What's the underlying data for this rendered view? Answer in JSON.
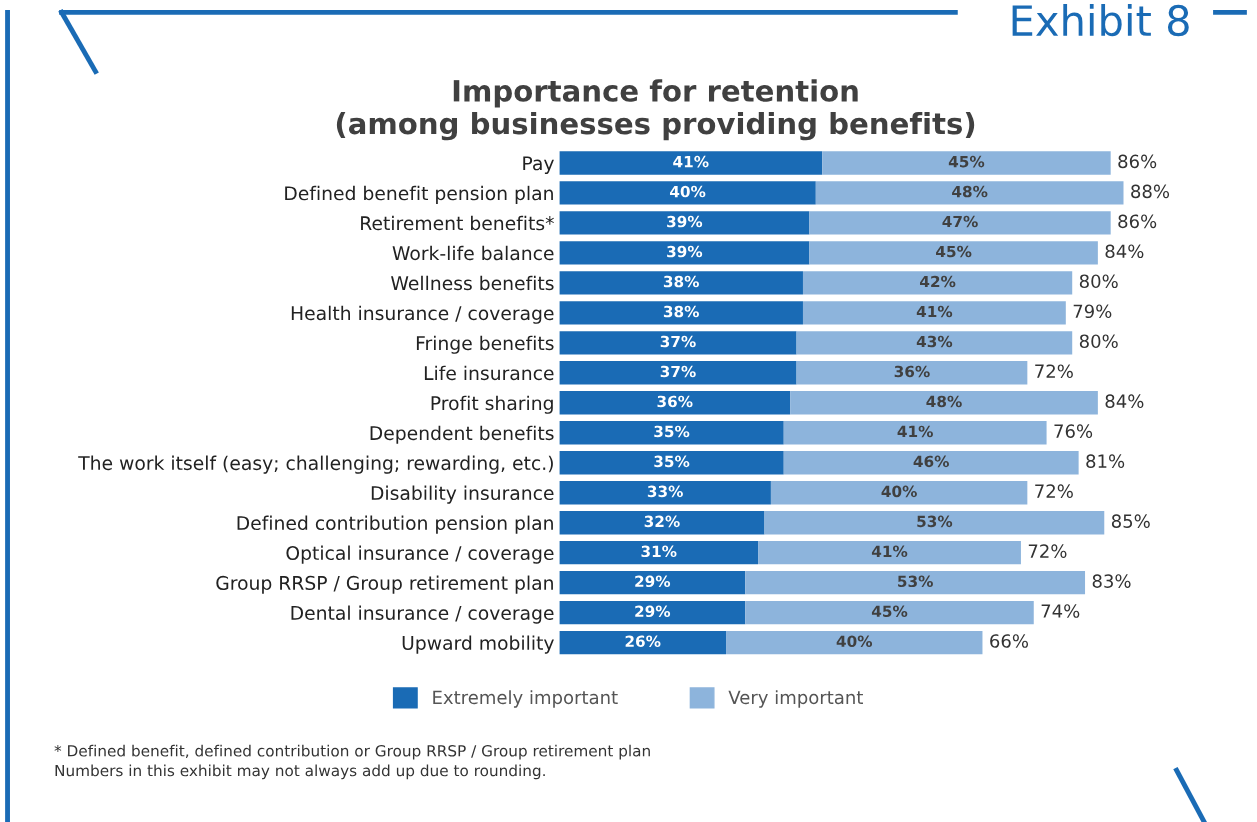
{
  "chart_data": {
    "type": "bar",
    "orientation": "horizontal",
    "stacked": true,
    "title": "Importance for retention\n(among businesses providing benefits)",
    "categories": [
      "Pay",
      "Defined benefit pension plan",
      "Retirement benefits*",
      "Work-life balance",
      "Wellness benefits",
      "Health insurance / coverage",
      "Fringe benefits",
      "Life insurance",
      "Profit sharing",
      "Dependent benefits",
      "The work itself (easy; challenging; rewarding, etc.)",
      "Disability insurance",
      "Defined contribution pension plan",
      "Optical insurance / coverage",
      "Group RRSP / Group retirement plan",
      "Dental insurance / coverage",
      "Upward mobility"
    ],
    "series": [
      {
        "name": "Extremely important",
        "color": "#1a6bb5",
        "values": [
          41,
          40,
          39,
          39,
          38,
          38,
          37,
          37,
          36,
          35,
          35,
          33,
          32,
          31,
          29,
          29,
          26
        ],
        "value_labels": [
          "41%",
          "40%",
          "39%",
          "39%",
          "38%",
          "38%",
          "37%",
          "37%",
          "36%",
          "35%",
          "35%",
          "33%",
          "32%",
          "31%",
          "29%",
          "29%",
          "26%"
        ]
      },
      {
        "name": "Very important",
        "color": "#8db4dc",
        "values": [
          45,
          48,
          47,
          45,
          42,
          41,
          43,
          36,
          48,
          41,
          46,
          40,
          53,
          41,
          53,
          45,
          40
        ],
        "value_labels": [
          "45%",
          "48%",
          "47%",
          "45%",
          "42%",
          "41%",
          "43%",
          "36%",
          "48%",
          "41%",
          "46%",
          "40%",
          "53%",
          "41%",
          "53%",
          "45%",
          "40%"
        ]
      }
    ],
    "totals": [
      "86%",
      "88%",
      "86%",
      "84%",
      "80%",
      "79%",
      "80%",
      "72%",
      "84%",
      "76%",
      "81%",
      "72%",
      "85%",
      "72%",
      "83%",
      "74%",
      "66%"
    ],
    "tick_labels": "y",
    "grid": false,
    "legend": "bottom",
    "annotations": [
      "Exhibit 8",
      "* Defined benefit, defined contribution or Group RRSP / Group retirement plan",
      "Numbers in this exhibit may not always add up due to rounding."
    ]
  }
}
